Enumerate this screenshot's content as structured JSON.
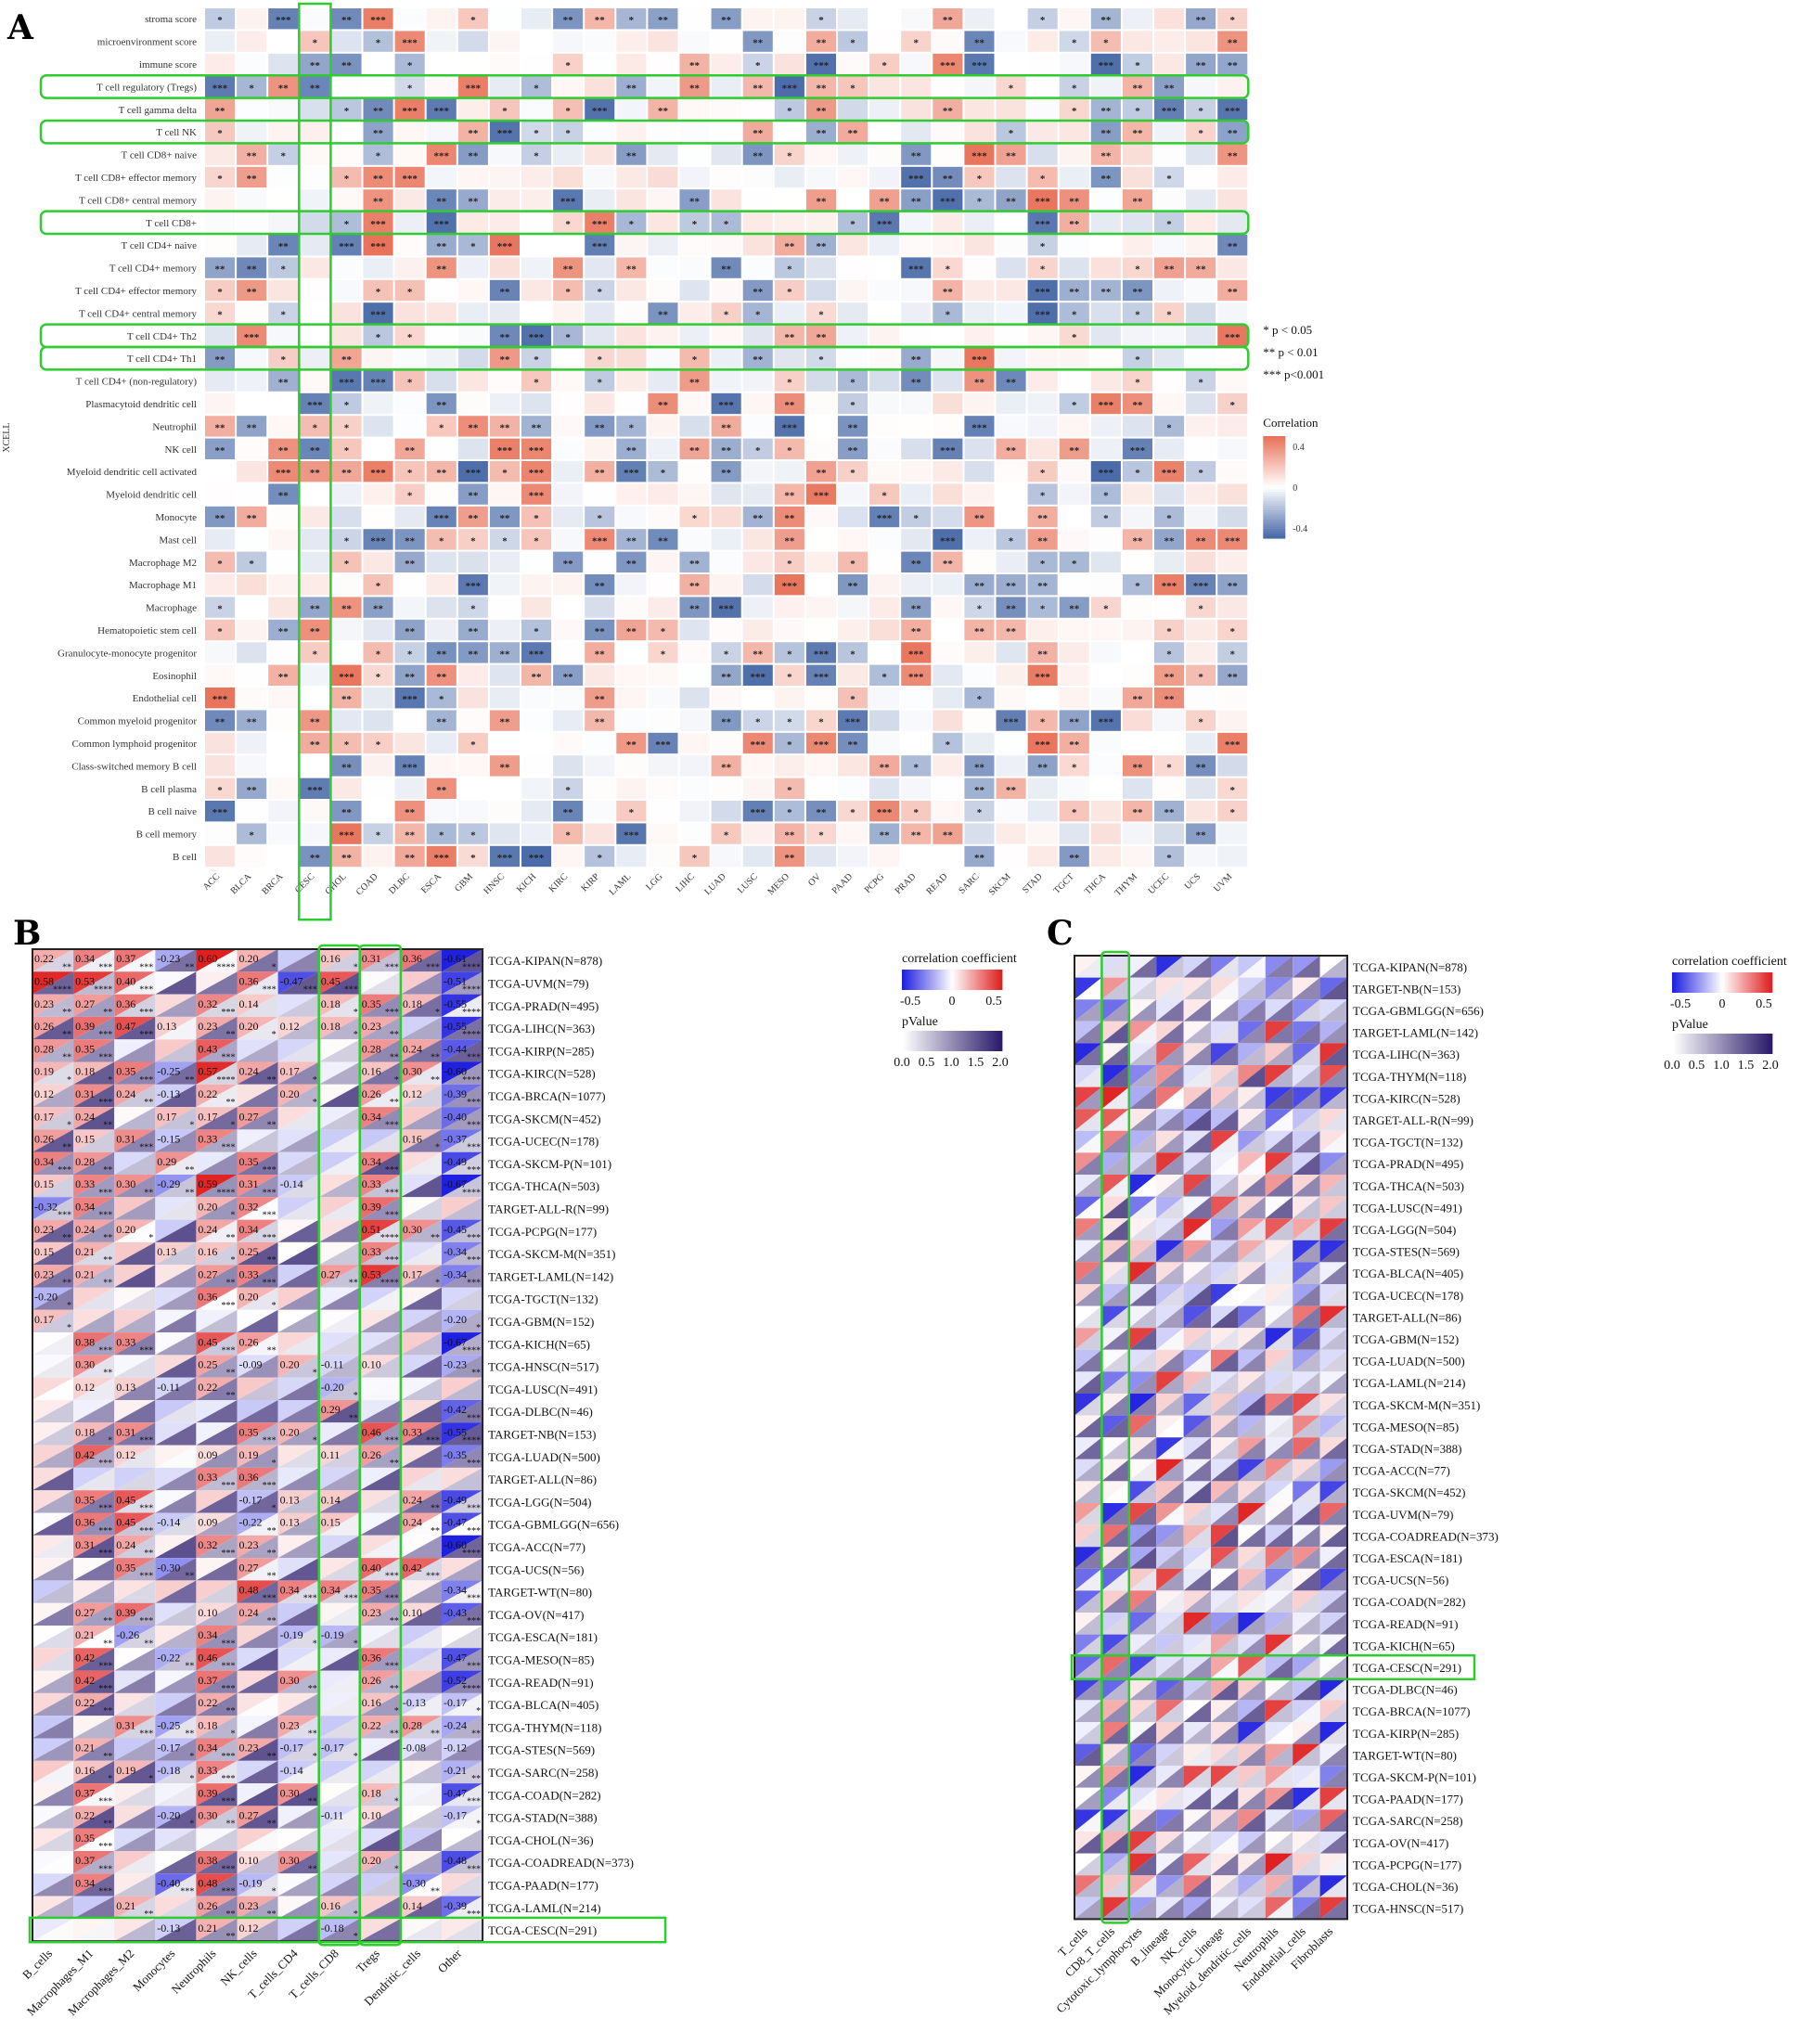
{
  "figure": {
    "panel_labels": [
      "A",
      "B",
      "C"
    ]
  },
  "colors": {
    "positive": "#e8735a",
    "negative": "#4a6ba8",
    "neutral": "#ffffff",
    "highlight": "#2ecc2e",
    "corr_neg": "#2020e0",
    "corr_pos": "#e02020",
    "pvalue": "#2b1b6b"
  },
  "chart_data": [
    {
      "id": "A",
      "type": "heatmap",
      "ylabel": "XCELL",
      "columns": [
        "ACC",
        "BLCA",
        "BRCA",
        "CESC",
        "CHOL",
        "COAD",
        "DLBC",
        "ESCA",
        "GBM",
        "HNSC",
        "KICH",
        "KIRC",
        "KIRP",
        "LAML",
        "LGG",
        "LIHC",
        "LUAD",
        "LUSC",
        "MESO",
        "OV",
        "PAAD",
        "PCPG",
        "PRAD",
        "READ",
        "SARC",
        "SKCM",
        "STAD",
        "TGCT",
        "THCA",
        "THYM",
        "UCEC",
        "UCS",
        "UVM"
      ],
      "rows": [
        "stroma score",
        "microenvironment score",
        "immune score",
        "T cell regulatory (Tregs)",
        "T cell gamma delta",
        "T cell NK",
        "T cell CD8+ naive",
        "T cell CD8+ effector memory",
        "T cell CD8+ central memory",
        "T cell CD8+",
        "T cell CD4+ naive",
        "T cell CD4+ memory",
        "T cell CD4+ effector memory",
        "T cell CD4+ central memory",
        "T cell CD4+ Th2",
        "T cell CD4+ Th1",
        "T cell CD4+ (non-regulatory)",
        "Plasmacytoid dendritic cell",
        "Neutrophil",
        "NK cell",
        "Myeloid dendritic cell activated",
        "Myeloid dendritic cell",
        "Monocyte",
        "Mast cell",
        "Macrophage M2",
        "Macrophage M1",
        "Macrophage",
        "Hematopoietic stem cell",
        "Granulocyte-monocyte progenitor",
        "Eosinophil",
        "Endothelial cell",
        "Common myeloid progenitor",
        "Common lymphoid progenitor",
        "Class-switched memory B cell",
        "B cell plasma",
        "B cell naive",
        "B cell memory",
        "B cell"
      ],
      "highlighted_rows": [
        "T cell regulatory (Tregs)",
        "T cell NK",
        "T cell CD8+",
        "T cell CD4+ Th2",
        "T cell CD4+ Th1"
      ],
      "highlighted_columns": [
        "CESC"
      ],
      "colorbar": {
        "title": "Correlation",
        "ticks": [
          0.4,
          0.0,
          -0.4
        ]
      },
      "significance_legend": [
        "* p < 0.05",
        "** p < 0.01",
        "*** p<0.001"
      ]
    },
    {
      "id": "B",
      "type": "heatmap",
      "columns": [
        "B_cells",
        "Macrophages_M1",
        "Macrophages_M2",
        "Monocytes",
        "Neutrophils",
        "NK_cells",
        "T_cells_CD4",
        "T_cells_CD8",
        "Tregs",
        "Dendritic_cells",
        "Other"
      ],
      "rows": [
        "TCGA-KIPAN(N=878)",
        "TCGA-UVM(N=79)",
        "TCGA-PRAD(N=495)",
        "TCGA-LIHC(N=363)",
        "TCGA-KIRP(N=285)",
        "TCGA-KIRC(N=528)",
        "TCGA-BRCA(N=1077)",
        "TCGA-SKCM(N=452)",
        "TCGA-UCEC(N=178)",
        "TCGA-SKCM-P(N=101)",
        "TCGA-THCA(N=503)",
        "TARGET-ALL-R(N=99)",
        "TCGA-PCPG(N=177)",
        "TCGA-SKCM-M(N=351)",
        "TARGET-LAML(N=142)",
        "TCGA-TGCT(N=132)",
        "TCGA-GBM(N=152)",
        "TCGA-KICH(N=65)",
        "TCGA-HNSC(N=517)",
        "TCGA-LUSC(N=491)",
        "TCGA-DLBC(N=46)",
        "TARGET-NB(N=153)",
        "TCGA-LUAD(N=500)",
        "TARGET-ALL(N=86)",
        "TCGA-LGG(N=504)",
        "TCGA-GBMLGG(N=656)",
        "TCGA-ACC(N=77)",
        "TCGA-UCS(N=56)",
        "TARGET-WT(N=80)",
        "TCGA-OV(N=417)",
        "TCGA-ESCA(N=181)",
        "TCGA-MESO(N=85)",
        "TCGA-READ(N=91)",
        "TCGA-BLCA(N=405)",
        "TCGA-THYM(N=118)",
        "TCGA-STES(N=569)",
        "TCGA-SARC(N=258)",
        "TCGA-COAD(N=282)",
        "TCGA-STAD(N=388)",
        "TCGA-CHOL(N=36)",
        "TCGA-COADREAD(N=373)",
        "TCGA-PAAD(N=177)",
        "TCGA-LAML(N=214)",
        "TCGA-CESC(N=291)"
      ],
      "highlighted_rows": [
        "TCGA-CESC(N=291)"
      ],
      "highlighted_columns": [
        "T_cells_CD8",
        "Tregs"
      ],
      "values_shown": [
        [
          0.22,
          0.34,
          0.37,
          -0.23,
          0.6,
          0.2,
          null,
          0.16,
          0.31,
          0.36,
          -0.61
        ],
        [
          0.58,
          0.53,
          0.4,
          null,
          null,
          0.36,
          -0.47,
          0.45,
          null,
          null,
          -0.51
        ],
        [
          0.23,
          0.27,
          0.36,
          null,
          0.32,
          0.14,
          null,
          0.18,
          0.35,
          0.18,
          -0.55
        ],
        [
          0.26,
          0.39,
          0.47,
          0.13,
          0.23,
          0.2,
          0.12,
          0.18,
          0.23,
          null,
          -0.55
        ],
        [
          0.28,
          0.35,
          null,
          null,
          0.43,
          null,
          null,
          null,
          0.28,
          0.24,
          -0.44
        ],
        [
          0.19,
          0.18,
          0.35,
          -0.25,
          0.57,
          0.24,
          0.17,
          null,
          0.16,
          0.3,
          -0.6
        ],
        [
          0.12,
          0.31,
          0.24,
          -0.13,
          0.22,
          null,
          0.2,
          null,
          0.26,
          0.12,
          -0.39
        ],
        [
          0.17,
          0.24,
          null,
          0.17,
          0.17,
          0.27,
          null,
          null,
          0.34,
          null,
          -0.4
        ],
        [
          0.26,
          0.15,
          0.31,
          -0.15,
          0.33,
          null,
          null,
          null,
          null,
          0.16,
          -0.37
        ],
        [
          0.34,
          0.28,
          null,
          0.29,
          null,
          0.35,
          null,
          null,
          0.34,
          null,
          -0.49
        ],
        [
          0.15,
          0.33,
          0.3,
          -0.29,
          0.59,
          0.31,
          -0.14,
          null,
          0.33,
          null,
          -0.67
        ],
        [
          -0.32,
          0.34,
          null,
          null,
          0.2,
          0.32,
          null,
          null,
          0.39,
          null,
          null
        ],
        [
          0.23,
          0.24,
          0.2,
          null,
          0.24,
          0.34,
          null,
          null,
          0.51,
          0.3,
          -0.45
        ],
        [
          0.15,
          0.21,
          null,
          0.13,
          0.16,
          0.25,
          null,
          null,
          0.33,
          null,
          -0.34
        ],
        [
          0.23,
          0.21,
          null,
          null,
          0.27,
          0.33,
          null,
          0.27,
          0.53,
          0.17,
          -0.34
        ],
        [
          -0.2,
          null,
          null,
          null,
          0.36,
          0.2,
          null,
          null,
          null,
          null,
          null
        ],
        [
          0.17,
          null,
          null,
          null,
          null,
          null,
          null,
          null,
          null,
          null,
          -0.2
        ],
        [
          null,
          0.38,
          0.33,
          null,
          0.45,
          0.26,
          null,
          null,
          null,
          null,
          -0.67
        ],
        [
          null,
          0.3,
          null,
          null,
          0.25,
          -0.09,
          0.2,
          -0.11,
          0.1,
          null,
          -0.23
        ],
        [
          null,
          0.12,
          0.13,
          -0.11,
          0.22,
          null,
          null,
          -0.2,
          null,
          null,
          null
        ],
        [
          null,
          null,
          null,
          null,
          null,
          null,
          null,
          0.29,
          null,
          null,
          -0.42
        ],
        [
          null,
          0.18,
          0.31,
          null,
          null,
          0.35,
          0.2,
          null,
          0.46,
          0.33,
          -0.55
        ],
        [
          null,
          0.42,
          0.12,
          null,
          0.09,
          0.19,
          null,
          0.11,
          0.26,
          null,
          -0.35
        ],
        [
          null,
          null,
          null,
          null,
          0.33,
          0.36,
          null,
          null,
          null,
          null,
          null
        ],
        [
          null,
          0.35,
          0.45,
          null,
          null,
          -0.17,
          0.13,
          0.14,
          null,
          0.24,
          -0.49
        ],
        [
          null,
          0.36,
          0.45,
          -0.14,
          0.09,
          -0.22,
          0.13,
          0.15,
          null,
          0.24,
          -0.47
        ],
        [
          null,
          0.31,
          0.24,
          null,
          0.32,
          0.23,
          null,
          null,
          null,
          null,
          -0.6
        ],
        [
          null,
          null,
          0.35,
          -0.3,
          null,
          0.27,
          null,
          null,
          0.4,
          0.42,
          null
        ],
        [
          null,
          null,
          null,
          null,
          null,
          0.48,
          0.34,
          0.34,
          0.35,
          null,
          -0.34
        ],
        [
          null,
          0.27,
          0.39,
          null,
          0.1,
          0.24,
          null,
          null,
          0.23,
          0.1,
          -0.43
        ],
        [
          null,
          0.21,
          -0.26,
          null,
          0.34,
          null,
          -0.19,
          -0.19,
          null,
          null,
          null
        ],
        [
          null,
          0.42,
          null,
          -0.22,
          0.46,
          null,
          null,
          null,
          0.36,
          null,
          -0.47
        ],
        [
          null,
          0.42,
          null,
          null,
          0.37,
          null,
          0.3,
          null,
          0.26,
          null,
          -0.52
        ],
        [
          null,
          0.22,
          null,
          null,
          0.22,
          null,
          null,
          null,
          0.16,
          -0.13,
          -0.17
        ],
        [
          null,
          null,
          0.31,
          -0.25,
          0.18,
          null,
          0.23,
          null,
          0.22,
          0.28,
          -0.24
        ],
        [
          null,
          0.21,
          null,
          -0.17,
          0.34,
          0.23,
          -0.17,
          -0.17,
          null,
          -0.08,
          -0.12
        ],
        [
          null,
          0.16,
          0.19,
          -0.18,
          0.33,
          null,
          -0.14,
          null,
          null,
          null,
          -0.21
        ],
        [
          null,
          0.37,
          null,
          null,
          0.39,
          null,
          0.3,
          null,
          0.18,
          null,
          -0.47
        ],
        [
          null,
          0.22,
          null,
          -0.2,
          0.3,
          0.27,
          null,
          -0.11,
          0.1,
          null,
          -0.17
        ],
        [
          null,
          0.35,
          null,
          null,
          null,
          null,
          null,
          null,
          null,
          null,
          null
        ],
        [
          null,
          0.37,
          null,
          null,
          0.38,
          0.1,
          0.3,
          null,
          0.2,
          null,
          -0.48
        ],
        [
          null,
          0.34,
          null,
          -0.4,
          0.48,
          -0.19,
          null,
          null,
          null,
          -0.3,
          null
        ],
        [
          null,
          null,
          0.21,
          null,
          0.26,
          0.23,
          null,
          0.16,
          null,
          0.14,
          -0.39
        ],
        [
          null,
          null,
          null,
          -0.13,
          0.21,
          0.12,
          null,
          -0.18,
          null,
          null,
          null
        ]
      ],
      "legend": {
        "corr_title": "correlation coefficient",
        "corr_ticks": [
          -0.5,
          0.0,
          0.5
        ],
        "p_title": "pValue",
        "p_ticks": [
          0.0,
          0.5,
          1.0,
          1.5,
          2.0
        ]
      }
    },
    {
      "id": "C",
      "type": "heatmap",
      "columns": [
        "T_cells",
        "CD8_T_cells",
        "Cytotoxic_lymphocytes",
        "B_lineage",
        "NK_cells",
        "Monocytic_lineage",
        "Myeloid_dendritic_cells",
        "Neutrophils",
        "Endothelial_cells",
        "Fibroblasts"
      ],
      "rows": [
        "TCGA-KIPAN(N=878)",
        "TARGET-NB(N=153)",
        "TCGA-GBMLGG(N=656)",
        "TARGET-LAML(N=142)",
        "TCGA-LIHC(N=363)",
        "TCGA-THYM(N=118)",
        "TCGA-KIRC(N=528)",
        "TARGET-ALL-R(N=99)",
        "TCGA-TGCT(N=132)",
        "TCGA-PRAD(N=495)",
        "TCGA-THCA(N=503)",
        "TCGA-LUSC(N=491)",
        "TCGA-LGG(N=504)",
        "TCGA-STES(N=569)",
        "TCGA-BLCA(N=405)",
        "TCGA-UCEC(N=178)",
        "TARGET-ALL(N=86)",
        "TCGA-GBM(N=152)",
        "TCGA-LUAD(N=500)",
        "TCGA-LAML(N=214)",
        "TCGA-SKCM-M(N=351)",
        "TCGA-MESO(N=85)",
        "TCGA-STAD(N=388)",
        "TCGA-ACC(N=77)",
        "TCGA-SKCM(N=452)",
        "TCGA-UVM(N=79)",
        "TCGA-COADREAD(N=373)",
        "TCGA-ESCA(N=181)",
        "TCGA-UCS(N=56)",
        "TCGA-COAD(N=282)",
        "TCGA-READ(N=91)",
        "TCGA-KICH(N=65)",
        "TCGA-CESC(N=291)",
        "TCGA-DLBC(N=46)",
        "TCGA-BRCA(N=1077)",
        "TCGA-KIRP(N=285)",
        "TARGET-WT(N=80)",
        "TCGA-SKCM-P(N=101)",
        "TCGA-PAAD(N=177)",
        "TCGA-SARC(N=258)",
        "TCGA-OV(N=417)",
        "TCGA-PCPG(N=177)",
        "TCGA-CHOL(N=36)",
        "TCGA-HNSC(N=517)"
      ],
      "highlighted_rows": [
        "TCGA-CESC(N=291)"
      ],
      "highlighted_columns": [
        "CD8_T_cells"
      ],
      "legend": {
        "corr_title": "correlation coefficient",
        "corr_ticks": [
          -0.5,
          0.0,
          0.5
        ],
        "p_title": "pValue",
        "p_ticks": [
          0.0,
          0.5,
          1.0,
          1.5,
          2.0
        ]
      }
    }
  ]
}
